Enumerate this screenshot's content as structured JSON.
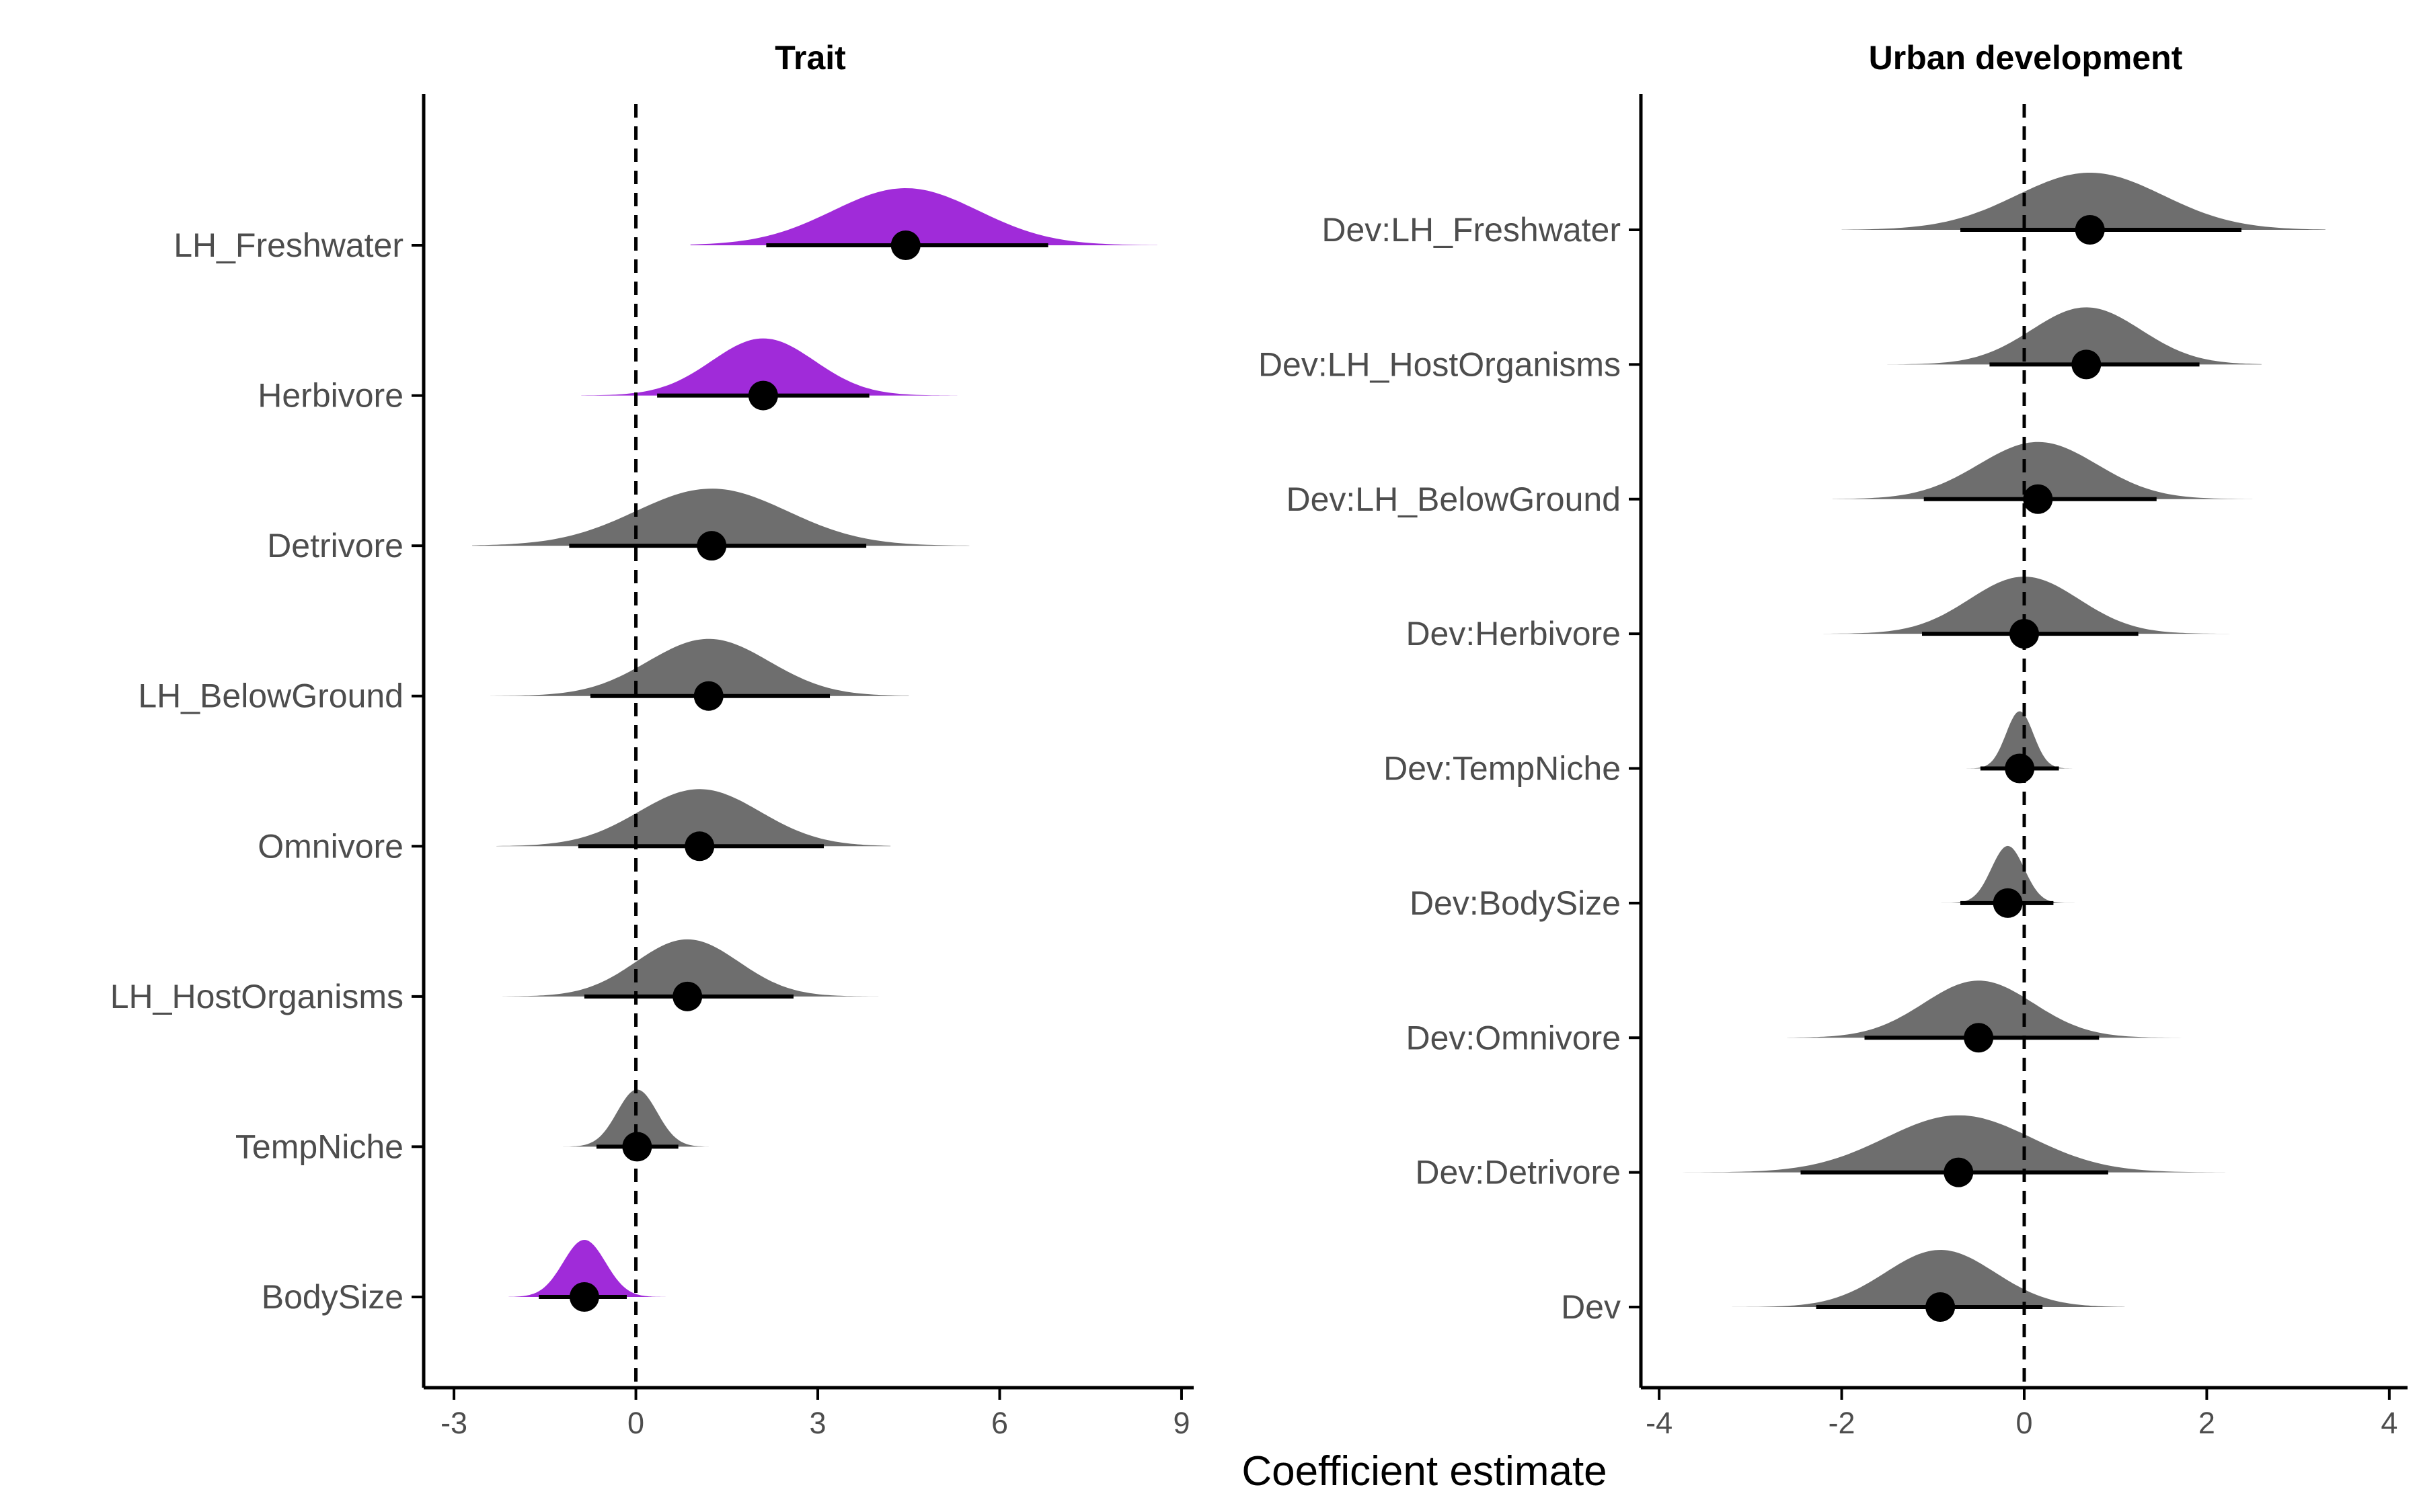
{
  "chart_data": [
    {
      "type": "interval",
      "title": "Trait",
      "xlim": [
        -3.5,
        9.2
      ],
      "x_ticks": [
        -3,
        0,
        3,
        6,
        9
      ],
      "x_tick_labels": [
        "-3",
        "0",
        "3",
        "6",
        "9"
      ],
      "grid": false,
      "reference_line": 0,
      "rows": [
        {
          "label": "LH_Freshwater",
          "estimate": 4.45,
          "lower": 2.15,
          "upper": 6.8,
          "dist_lo": 0.9,
          "dist_hi": 8.6,
          "sd": 1.2,
          "highlight": true
        },
        {
          "label": "Herbivore",
          "estimate": 2.1,
          "lower": 0.35,
          "upper": 3.85,
          "dist_lo": -0.9,
          "dist_hi": 5.3,
          "sd": 0.85,
          "highlight": true
        },
        {
          "label": "Detrivore",
          "estimate": 1.25,
          "lower": -1.1,
          "upper": 3.8,
          "dist_lo": -2.7,
          "dist_hi": 5.5,
          "sd": 1.25,
          "highlight": false
        },
        {
          "label": "LH_BelowGround",
          "estimate": 1.2,
          "lower": -0.75,
          "upper": 3.2,
          "dist_lo": -2.4,
          "dist_hi": 4.5,
          "sd": 1.0,
          "highlight": false
        },
        {
          "label": "Omnivore",
          "estimate": 1.05,
          "lower": -0.95,
          "upper": 3.1,
          "dist_lo": -2.3,
          "dist_hi": 4.2,
          "sd": 1.0,
          "highlight": false
        },
        {
          "label": "LH_HostOrganisms",
          "estimate": 0.85,
          "lower": -0.85,
          "upper": 2.6,
          "dist_lo": -2.2,
          "dist_hi": 4.0,
          "sd": 0.85,
          "highlight": false
        },
        {
          "label": "TempNiche",
          "estimate": 0.02,
          "lower": -0.65,
          "upper": 0.7,
          "dist_lo": -1.2,
          "dist_hi": 1.2,
          "sd": 0.33,
          "highlight": false
        },
        {
          "label": "BodySize",
          "estimate": -0.85,
          "lower": -1.6,
          "upper": -0.15,
          "dist_lo": -2.1,
          "dist_hi": 0.5,
          "sd": 0.35,
          "highlight": true
        }
      ]
    },
    {
      "type": "interval",
      "title": "Urban development",
      "xlim": [
        -4.2,
        4.2
      ],
      "x_ticks": [
        -4,
        -2,
        0,
        2,
        4
      ],
      "x_tick_labels": [
        "-4",
        "-2",
        "0",
        "2",
        "4"
      ],
      "grid": false,
      "reference_line": 0,
      "rows": [
        {
          "label": "Dev:LH_Freshwater",
          "estimate": 0.72,
          "lower": -0.7,
          "upper": 2.38,
          "dist_lo": -2.0,
          "dist_hi": 3.3,
          "sd": 0.8,
          "highlight": false
        },
        {
          "label": "Dev:LH_HostOrganisms",
          "estimate": 0.68,
          "lower": -0.38,
          "upper": 1.92,
          "dist_lo": -1.5,
          "dist_hi": 2.6,
          "sd": 0.6,
          "highlight": false
        },
        {
          "label": "Dev:LH_BelowGround",
          "estimate": 0.15,
          "lower": -1.1,
          "upper": 1.45,
          "dist_lo": -2.1,
          "dist_hi": 2.5,
          "sd": 0.65,
          "highlight": false
        },
        {
          "label": "Dev:Herbivore",
          "estimate": 0.0,
          "lower": -1.12,
          "upper": 1.25,
          "dist_lo": -2.2,
          "dist_hi": 2.3,
          "sd": 0.6,
          "highlight": false
        },
        {
          "label": "Dev:TempNiche",
          "estimate": -0.05,
          "lower": -0.48,
          "upper": 0.38,
          "dist_lo": -0.8,
          "dist_hi": 0.6,
          "sd": 0.15,
          "highlight": false
        },
        {
          "label": "Dev:BodySize",
          "estimate": -0.18,
          "lower": -0.7,
          "upper": 0.32,
          "dist_lo": -1.1,
          "dist_hi": 0.6,
          "sd": 0.18,
          "highlight": false
        },
        {
          "label": "Dev:Omnivore",
          "estimate": -0.5,
          "lower": -1.75,
          "upper": 0.82,
          "dist_lo": -2.6,
          "dist_hi": 1.8,
          "sd": 0.6,
          "highlight": false
        },
        {
          "label": "Dev:Detrivore",
          "estimate": -0.72,
          "lower": -2.45,
          "upper": 0.92,
          "dist_lo": -3.8,
          "dist_hi": 2.2,
          "sd": 0.8,
          "highlight": false
        },
        {
          "label": "Dev",
          "estimate": -0.92,
          "lower": -2.28,
          "upper": 0.2,
          "dist_lo": -3.2,
          "dist_hi": 1.1,
          "sd": 0.6,
          "highlight": false
        }
      ]
    }
  ],
  "x_axis_title": "Coefficient estimate",
  "colors": {
    "highlight": "#a02bd9",
    "default": "#6e6e6e",
    "point": "#000000",
    "axis": "#000000",
    "tick_text": "#4d4d4d"
  }
}
